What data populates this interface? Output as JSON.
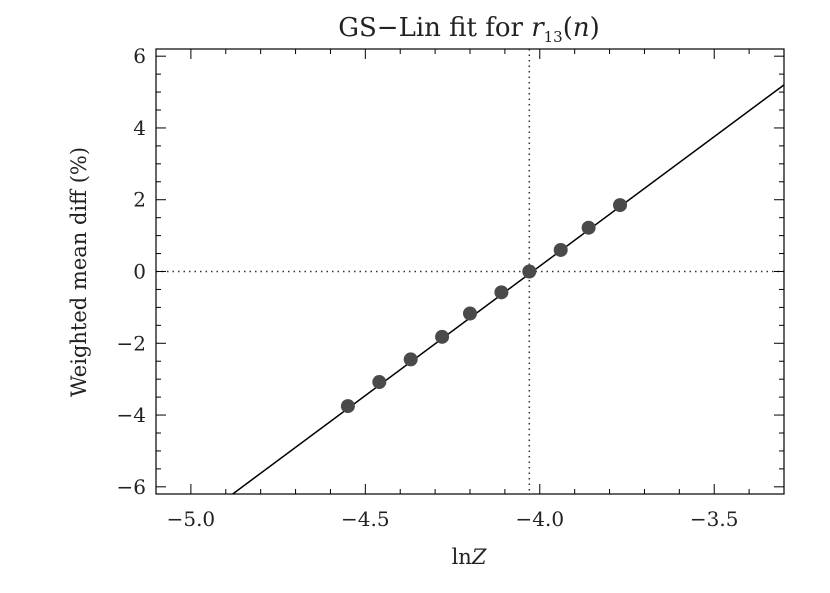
{
  "chart_data": {
    "type": "scatter",
    "title": "GS−Lin fit for r13(n)",
    "title_parts": {
      "prefix": "GS−Lin fit for ",
      "var": "r",
      "sub": "13",
      "arg_open": "(",
      "arg": "n",
      "arg_close": ")"
    },
    "xlabel": "lnZ",
    "xlabel_parts": {
      "prefix": "ln",
      "var": "Z"
    },
    "ylabel": "Weighted mean diff (%)",
    "xlim": [
      -5.1,
      -3.3
    ],
    "ylim": [
      -6.2,
      6.2
    ],
    "x_ticks": [
      -5.0,
      -4.5,
      -4.0,
      -3.5
    ],
    "x_tick_labels": [
      "−5.0",
      "−4.5",
      "−4.0",
      "−3.5"
    ],
    "y_ticks": [
      -6,
      -4,
      -2,
      0,
      2,
      4,
      6
    ],
    "y_tick_labels": [
      "−6",
      "−4",
      "−2",
      "0",
      "2",
      "4",
      "6"
    ],
    "points": {
      "x": [
        -4.55,
        -4.46,
        -4.37,
        -4.28,
        -4.2,
        -4.11,
        -4.03,
        -3.94,
        -3.86,
        -3.77
      ],
      "y": [
        -3.75,
        -3.08,
        -2.45,
        -1.82,
        -1.17,
        -0.58,
        0.0,
        0.6,
        1.22,
        1.85
      ]
    },
    "fit_line": {
      "x": [
        -4.88,
        -3.3
      ],
      "y": [
        -6.2,
        5.2
      ]
    },
    "reference_lines": {
      "x": -4.03,
      "y": 0
    },
    "grid": false,
    "colors": {
      "points": "#4a4a4a",
      "line": "#000000",
      "reference": "#333333",
      "axes": "#000000",
      "text": "#222222"
    }
  }
}
